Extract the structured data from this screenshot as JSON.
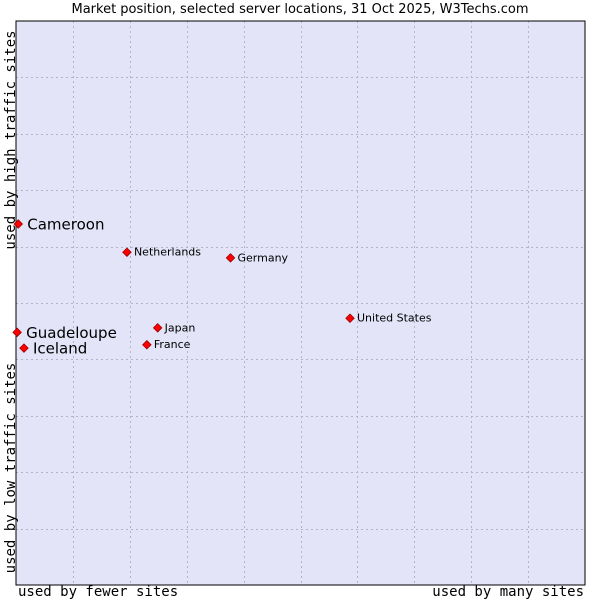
{
  "chart_data": {
    "type": "scatter",
    "title": "Market position, selected server locations, 31 Oct 2025, W3Techs.com",
    "xlabel_left": "used by fewer sites",
    "xlabel_right": "used by many sites",
    "ylabel_top": "used by high traffic sites",
    "ylabel_bottom": "used by low traffic sites",
    "xlim": [
      0,
      100
    ],
    "ylim": [
      0,
      100
    ],
    "grid": true,
    "colors": {
      "background": "#e3e4f8",
      "grid": "#b4b4c8",
      "point": "#ff0000",
      "point_outline": "#990000",
      "frame": "#000000"
    },
    "points": [
      {
        "label": "Cameroon",
        "x": 0.4,
        "y": 64.0,
        "highlight": true
      },
      {
        "label": "Netherlands",
        "x": 19.5,
        "y": 59.0,
        "highlight": false
      },
      {
        "label": "Germany",
        "x": 37.7,
        "y": 58.0,
        "highlight": false
      },
      {
        "label": "United States",
        "x": 58.7,
        "y": 47.3,
        "highlight": false
      },
      {
        "label": "Japan",
        "x": 24.9,
        "y": 45.6,
        "highlight": false
      },
      {
        "label": "Guadeloupe",
        "x": 0.2,
        "y": 44.8,
        "highlight": true
      },
      {
        "label": "France",
        "x": 23.0,
        "y": 42.6,
        "highlight": false
      },
      {
        "label": "Iceland",
        "x": 1.4,
        "y": 42.0,
        "highlight": true
      }
    ]
  }
}
